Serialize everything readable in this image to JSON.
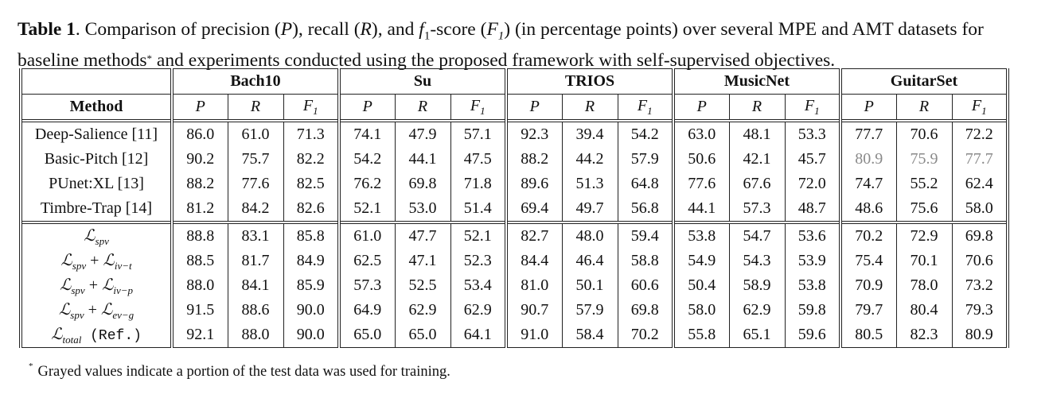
{
  "caption": {
    "label": "Table 1",
    "text_1": ". Comparison of precision (",
    "p": "P",
    "text_2": "), recall (",
    "r": "R",
    "text_3": "), and ",
    "f1": "f",
    "f1_sub": "1",
    "text_4": "-score (",
    "F1": "F",
    "F1_sub": "1",
    "text_5": ") (in percentage points) over several MPE and AMT datasets for baseline methods",
    "star": "*",
    "text_6": " and experiments conducted using the proposed framework with self-supervised objectives."
  },
  "table": {
    "method_header": "Method",
    "datasets": [
      "Bach10",
      "Su",
      "TRIOS",
      "MusicNet",
      "GuitarSet"
    ],
    "metrics": [
      "P",
      "R",
      "F"
    ],
    "metric_sub": "1",
    "baselines": [
      {
        "method": "Deep-Salience [11]",
        "values": [
          "86.0",
          "61.0",
          "71.3",
          "74.1",
          "47.9",
          "57.1",
          "92.3",
          "39.4",
          "54.2",
          "63.0",
          "48.1",
          "53.3",
          "77.7",
          "70.6",
          "72.2"
        ],
        "bold": [
          6
        ],
        "gray": []
      },
      {
        "method": "Basic-Pitch [12]",
        "values": [
          "90.2",
          "75.7",
          "82.2",
          "54.2",
          "44.1",
          "47.5",
          "88.2",
          "44.2",
          "57.9",
          "50.6",
          "42.1",
          "45.7",
          "80.9",
          "75.9",
          "77.7"
        ],
        "bold": [
          12
        ],
        "gray": [
          12,
          13,
          14
        ]
      },
      {
        "method": "PUnet:XL [13]",
        "values": [
          "88.2",
          "77.6",
          "82.5",
          "76.2",
          "69.8",
          "71.8",
          "89.6",
          "51.3",
          "64.8",
          "77.6",
          "67.6",
          "72.0",
          "74.7",
          "55.2",
          "62.4"
        ],
        "bold": [
          3,
          4,
          5,
          9,
          10,
          11
        ],
        "gray": []
      },
      {
        "method": "Timbre-Trap [14]",
        "values": [
          "81.2",
          "84.2",
          "82.6",
          "52.1",
          "53.0",
          "51.4",
          "69.4",
          "49.7",
          "56.8",
          "44.1",
          "57.3",
          "48.7",
          "48.6",
          "75.6",
          "58.0"
        ],
        "bold": [],
        "gray": []
      }
    ],
    "experiments": [
      {
        "L": "ℒ",
        "sub1": "spv",
        "plus": "",
        "L2": "",
        "sub2": "",
        "ref": "",
        "values": [
          "88.8",
          "83.1",
          "85.8",
          "61.0",
          "47.7",
          "52.1",
          "82.7",
          "48.0",
          "59.4",
          "53.8",
          "54.7",
          "53.6",
          "70.2",
          "72.9",
          "69.8"
        ],
        "bold": []
      },
      {
        "L": "ℒ",
        "sub1": "spv",
        "plus": " + ",
        "L2": "ℒ",
        "sub2": "iv−t",
        "ref": "",
        "values": [
          "88.5",
          "81.7",
          "84.9",
          "62.5",
          "47.1",
          "52.3",
          "84.4",
          "46.4",
          "58.8",
          "54.9",
          "54.3",
          "53.9",
          "75.4",
          "70.1",
          "70.6"
        ],
        "bold": []
      },
      {
        "L": "ℒ",
        "sub1": "spv",
        "plus": " + ",
        "L2": "ℒ",
        "sub2": "iv−p",
        "ref": "",
        "values": [
          "88.0",
          "84.1",
          "85.9",
          "57.3",
          "52.5",
          "53.4",
          "81.0",
          "50.1",
          "60.6",
          "50.4",
          "58.9",
          "53.8",
          "70.9",
          "78.0",
          "73.2"
        ],
        "bold": []
      },
      {
        "L": "ℒ",
        "sub1": "spv",
        "plus": " + ",
        "L2": "ℒ",
        "sub2": "ev−g",
        "ref": "",
        "values": [
          "91.5",
          "88.6",
          "90.0",
          "64.9",
          "62.9",
          "62.9",
          "90.7",
          "57.9",
          "69.8",
          "58.0",
          "62.9",
          "59.8",
          "79.7",
          "80.4",
          "79.3"
        ],
        "bold": [
          1,
          2
        ]
      },
      {
        "L": "ℒ",
        "sub1": "total",
        "plus": "",
        "L2": "",
        "sub2": "",
        "ref": " (Ref.)",
        "values": [
          "92.1",
          "88.0",
          "90.0",
          "65.0",
          "65.0",
          "64.1",
          "91.0",
          "58.4",
          "70.2",
          "55.8",
          "65.1",
          "59.6",
          "80.5",
          "82.3",
          "80.9"
        ],
        "bold": [
          0,
          7,
          8,
          13,
          14
        ]
      }
    ]
  },
  "footnote": {
    "star": "*",
    "text": "Grayed values indicate a portion of the test data was used for training."
  }
}
